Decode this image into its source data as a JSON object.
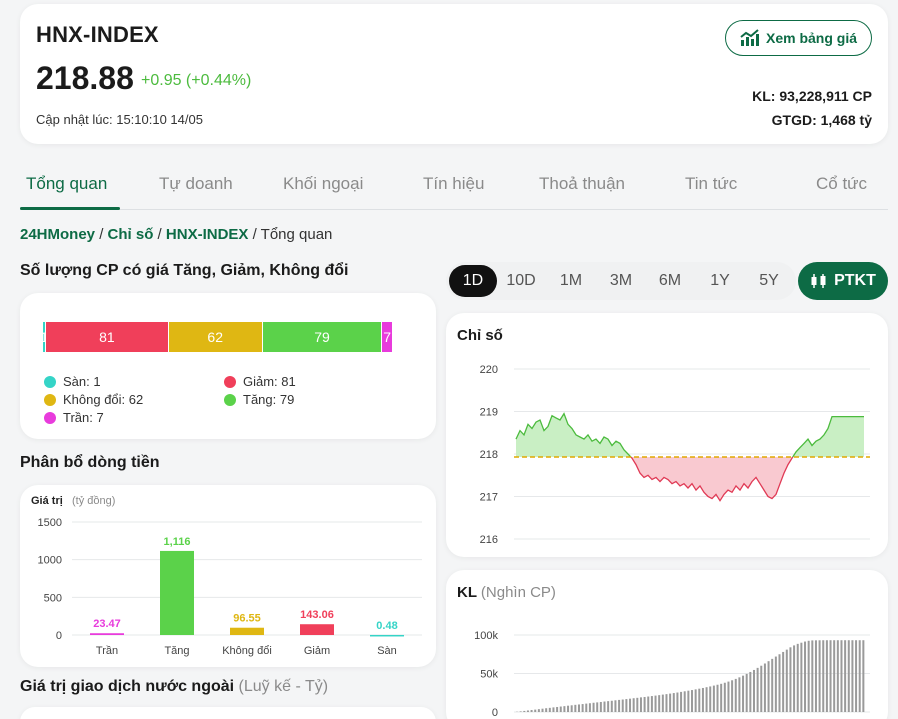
{
  "header": {
    "title": "HNX-INDEX",
    "price": "218.88",
    "change": "+0.95 (+0.44%)",
    "updated": "Cập nhật lúc: 15:10:10 14/05",
    "board_button": "Xem bảng giá",
    "volume": "KL: 93,228,911 CP",
    "value": "GTGD: 1,468 tỷ"
  },
  "tabs": [
    "Tổng quan",
    "Tự doanh",
    "Khối ngoại",
    "Tín hiệu",
    "Thoả thuận",
    "Tin tức",
    "Cổ tức"
  ],
  "breadcrumb": {
    "home": "24HMoney",
    "sep1": " / ",
    "level2": "Chỉ số",
    "sep2": " / ",
    "level3": "HNX-INDEX",
    "sep3": " / ",
    "current": "Tổng quan"
  },
  "counts_section": {
    "title": "Số lượng CP có giá Tăng, Giảm, Không đổi",
    "segments": [
      {
        "label": "1",
        "value": 1,
        "color": "#35d4c7"
      },
      {
        "label": "81",
        "value": 81,
        "color": "#f03f5a"
      },
      {
        "label": "62",
        "value": 62,
        "color": "#dfb713"
      },
      {
        "label": "79",
        "value": 79,
        "color": "#5bd24a"
      },
      {
        "label": "7",
        "value": 7,
        "color": "#e83bdc"
      }
    ],
    "legend": {
      "san": "Sàn: 1",
      "giam": "Giảm: 81",
      "khongdoi": "Không đổi: 62",
      "tang": "Tăng: 79",
      "tran": "Trần: 7"
    }
  },
  "flow_section": {
    "title": "Phân bổ dòng tiền",
    "ylabel": "Giá trị",
    "yunit": "(tỷ đồng)"
  },
  "foreign_section": {
    "title": "Giá trị giao dịch nước ngoài",
    "unit": "(Luỹ kế - Tỷ)"
  },
  "periods": [
    "1D",
    "10D",
    "1M",
    "3M",
    "6M",
    "1Y",
    "5Y"
  ],
  "ptkt_label": "PTKT",
  "index_card": {
    "title": "Chỉ số"
  },
  "volume_card": {
    "title": "KL",
    "unit": "(Nghìn CP)"
  },
  "colors": {
    "brand": "#0d6b45",
    "up": "#4cbb3e",
    "down": "#f03f5a"
  },
  "chart_data": [
    {
      "type": "bar",
      "title": "Phân bổ dòng tiền",
      "ylabel": "Giá trị (tỷ đồng)",
      "ylim": [
        0,
        1500
      ],
      "yticks": [
        0,
        500,
        1000,
        1500
      ],
      "categories": [
        "Trần",
        "Tăng",
        "Không đổi",
        "Giảm",
        "Sàn"
      ],
      "values": [
        23.47,
        1116,
        96.55,
        143.06,
        0.48
      ],
      "value_labels": [
        "23.47",
        "1,116",
        "96.55",
        "143.06",
        "0.48"
      ],
      "colors": [
        "#e83bdc",
        "#5bd24a",
        "#dfb713",
        "#f03f5a",
        "#35d4c7"
      ]
    },
    {
      "type": "area",
      "title": "Chỉ số",
      "ylim": [
        216,
        220
      ],
      "yticks": [
        216,
        217,
        218,
        219,
        220
      ],
      "reference": 217.93,
      "values": [
        218.35,
        218.55,
        218.45,
        218.7,
        218.6,
        218.75,
        218.8,
        218.55,
        218.65,
        218.9,
        218.85,
        218.8,
        218.95,
        218.7,
        218.6,
        218.45,
        218.4,
        218.35,
        218.45,
        218.3,
        218.35,
        218.25,
        218.4,
        218.35,
        218.2,
        218.3,
        218.25,
        218.1,
        218.0,
        217.9,
        217.75,
        217.55,
        217.45,
        217.5,
        217.4,
        217.45,
        217.35,
        217.45,
        217.4,
        217.3,
        217.35,
        217.25,
        217.3,
        217.2,
        217.3,
        217.15,
        217.25,
        217.1,
        217.0,
        216.95,
        217.05,
        216.9,
        217.05,
        217.15,
        217.1,
        217.25,
        217.15,
        217.3,
        217.2,
        217.35,
        217.45,
        217.3,
        217.15,
        217.0,
        216.95,
        217.05,
        217.3,
        217.55,
        217.75,
        217.9,
        218.05,
        218.15,
        218.25,
        218.35,
        218.2,
        218.3,
        218.35,
        218.45,
        218.6,
        218.88,
        218.88,
        218.88,
        218.88,
        218.88,
        218.88,
        218.88,
        218.88,
        218.88
      ]
    },
    {
      "type": "bar",
      "title": "KL",
      "ylabel": "(Nghìn CP)",
      "ylim": [
        0,
        100000
      ],
      "yticks": [
        0,
        50000,
        100000
      ],
      "ytick_labels": [
        "0",
        "50k",
        "100k"
      ],
      "values": [
        300,
        800,
        1400,
        2000,
        2600,
        3100,
        3700,
        4300,
        4900,
        5400,
        6000,
        6500,
        7100,
        7600,
        8200,
        8700,
        9300,
        9800,
        10300,
        10900,
        11400,
        12000,
        12500,
        13000,
        13600,
        14100,
        14600,
        15200,
        15700,
        16200,
        16800,
        17300,
        17900,
        18400,
        19000,
        19500,
        20100,
        20700,
        21300,
        21900,
        22600,
        23200,
        23900,
        24600,
        25300,
        26100,
        26900,
        27700,
        28500,
        29400,
        30300,
        31200,
        32200,
        33200,
        34300,
        35400,
        36600,
        38000,
        39500,
        41200,
        43000,
        45000,
        47200,
        49500,
        52000,
        54600,
        57300,
        60100,
        63000,
        66000,
        69000,
        72000,
        75000,
        78000,
        81000,
        84000,
        86500,
        88500,
        90000,
        91500,
        92500,
        93000,
        93100,
        93150,
        93200,
        93220,
        93228,
        93228,
        93228,
        93228,
        93228,
        93228,
        93228,
        93228,
        93228,
        93228
      ]
    }
  ]
}
